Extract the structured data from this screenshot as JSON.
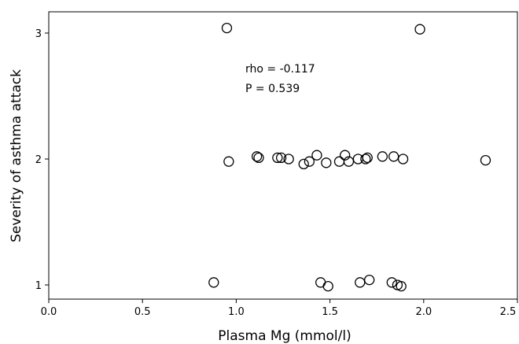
{
  "chart_data": {
    "type": "scatter",
    "title": "",
    "xlabel": "Plasma Mg (mmol/l)",
    "ylabel": "Severity of asthma attack",
    "xlim": [
      0.0,
      2.5
    ],
    "ylim": [
      0.95,
      3.1
    ],
    "x_ticks": [
      "0.0",
      "0.5",
      "1.0",
      "1.5",
      "2.0",
      "2.5"
    ],
    "x_tick_values": [
      0.0,
      0.5,
      1.0,
      1.5,
      2.0,
      2.5
    ],
    "y_ticks": [
      "1",
      "2",
      "3"
    ],
    "y_tick_values": [
      1,
      2,
      3
    ],
    "grid": false,
    "annotations": [
      "rho = -0.117",
      "P = 0.539"
    ],
    "points": [
      {
        "x": 0.95,
        "y": 3.04
      },
      {
        "x": 1.98,
        "y": 3.03
      },
      {
        "x": 0.96,
        "y": 1.98
      },
      {
        "x": 1.11,
        "y": 2.02
      },
      {
        "x": 1.12,
        "y": 2.01
      },
      {
        "x": 1.22,
        "y": 2.01
      },
      {
        "x": 1.24,
        "y": 2.01
      },
      {
        "x": 1.28,
        "y": 2.0
      },
      {
        "x": 1.36,
        "y": 1.96
      },
      {
        "x": 1.39,
        "y": 1.98
      },
      {
        "x": 1.43,
        "y": 2.03
      },
      {
        "x": 1.48,
        "y": 1.97
      },
      {
        "x": 1.55,
        "y": 1.98
      },
      {
        "x": 1.58,
        "y": 2.03
      },
      {
        "x": 1.6,
        "y": 1.98
      },
      {
        "x": 1.65,
        "y": 2.0
      },
      {
        "x": 1.69,
        "y": 2.0
      },
      {
        "x": 1.7,
        "y": 2.01
      },
      {
        "x": 1.78,
        "y": 2.02
      },
      {
        "x": 1.84,
        "y": 2.02
      },
      {
        "x": 1.89,
        "y": 2.0
      },
      {
        "x": 2.33,
        "y": 1.99
      },
      {
        "x": 0.88,
        "y": 1.02
      },
      {
        "x": 1.45,
        "y": 1.02
      },
      {
        "x": 1.49,
        "y": 0.99
      },
      {
        "x": 1.66,
        "y": 1.02
      },
      {
        "x": 1.71,
        "y": 1.04
      },
      {
        "x": 1.83,
        "y": 1.02
      },
      {
        "x": 1.86,
        "y": 1.0
      },
      {
        "x": 1.88,
        "y": 0.99
      }
    ]
  }
}
